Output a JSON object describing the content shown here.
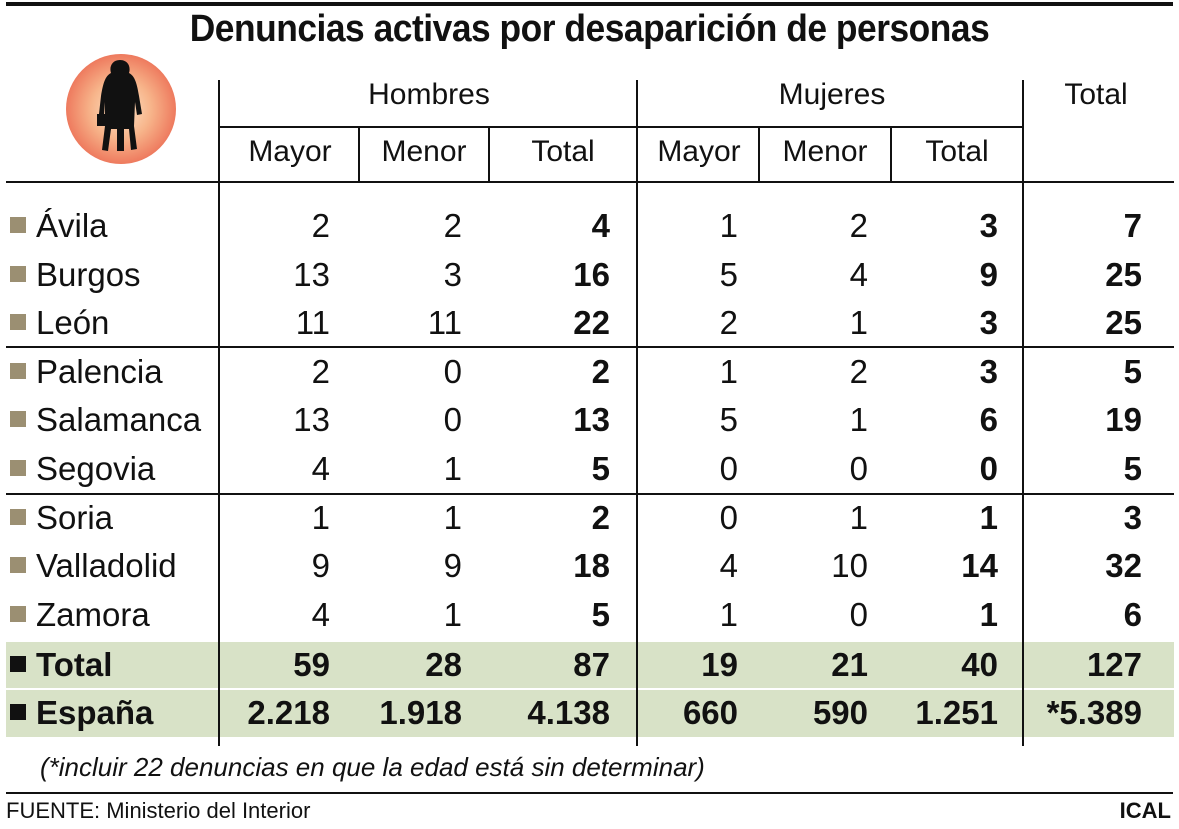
{
  "title": "Denuncias activas por desaparición de personas",
  "header": {
    "hombres": "Hombres",
    "mujeres": "Mujeres",
    "total": "Total",
    "sub": [
      "Mayor",
      "Menor",
      "Total",
      "Mayor",
      "Menor",
      "Total"
    ]
  },
  "colors": {
    "bullet": "#9b8f72",
    "bullet_sum": "#111111",
    "summary_bg": "#d8e2c7",
    "logo_glow": "#f08a6a"
  },
  "icons": {
    "logo": "missing-person-icon"
  },
  "chart_data": {
    "type": "table",
    "title": "Denuncias activas por desaparición de personas",
    "columns": [
      "",
      "Hombres Mayor",
      "Hombres Menor",
      "Hombres Total",
      "Mujeres Mayor",
      "Mujeres Menor",
      "Mujeres Total",
      "Total"
    ],
    "rows": [
      {
        "name": "Ávila",
        "values": [
          "2",
          "2",
          "4",
          "1",
          "2",
          "3",
          "7"
        ]
      },
      {
        "name": "Burgos",
        "values": [
          "13",
          "3",
          "16",
          "5",
          "4",
          "9",
          "25"
        ]
      },
      {
        "name": "León",
        "values": [
          "11",
          "11",
          "22",
          "2",
          "1",
          "3",
          "25"
        ]
      },
      {
        "name": "Palencia",
        "values": [
          "2",
          "0",
          "2",
          "1",
          "2",
          "3",
          "5"
        ]
      },
      {
        "name": "Salamanca",
        "values": [
          "13",
          "0",
          "13",
          "5",
          "1",
          "6",
          "19"
        ]
      },
      {
        "name": "Segovia",
        "values": [
          "4",
          "1",
          "5",
          "0",
          "0",
          "0",
          "5"
        ]
      },
      {
        "name": "Soria",
        "values": [
          "1",
          "1",
          "2",
          "0",
          "1",
          "1",
          "3"
        ]
      },
      {
        "name": "Valladolid",
        "values": [
          "9",
          "9",
          "18",
          "4",
          "10",
          "14",
          "32"
        ]
      },
      {
        "name": "Zamora",
        "values": [
          "4",
          "1",
          "5",
          "1",
          "0",
          "1",
          "6"
        ]
      }
    ],
    "summary": [
      {
        "name": "Total",
        "values": [
          "59",
          "28",
          "87",
          "19",
          "21",
          "40",
          "127"
        ]
      },
      {
        "name": "España",
        "values": [
          "2.218",
          "1.918",
          "4.138",
          "660",
          "590",
          "1.251",
          "*5.389"
        ]
      }
    ]
  },
  "footnote": "(*incluir 22 denuncias en que la edad está sin determinar)",
  "source": "FUENTE: Ministerio del Interior",
  "credit": "ICAL"
}
